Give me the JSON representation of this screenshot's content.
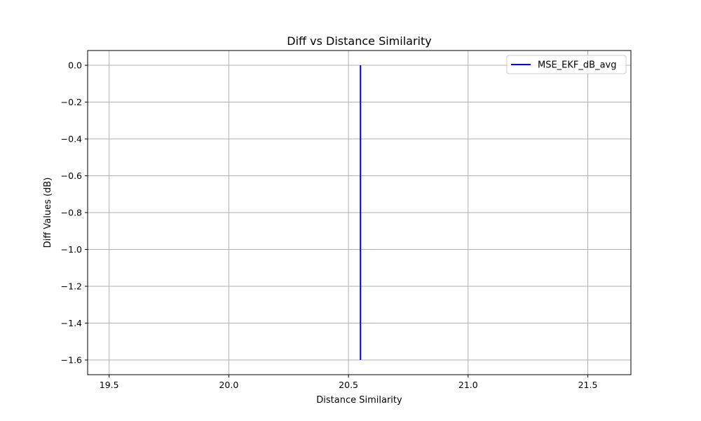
{
  "chart_data": {
    "type": "line",
    "title": "Diff vs Distance Similarity",
    "xlabel": "Distance Similarity",
    "ylabel": "Diff Values (dB)",
    "xlim": [
      19.41,
      21.68
    ],
    "ylim": [
      -1.68,
      0.08
    ],
    "xticks": [
      19.5,
      20.0,
      20.5,
      21.0,
      21.5
    ],
    "xtick_labels": [
      "19.5",
      "20.0",
      "20.5",
      "21.0",
      "21.5"
    ],
    "yticks": [
      0.0,
      -0.2,
      -0.4,
      -0.6,
      -0.8,
      -1.0,
      -1.2,
      -1.4,
      -1.6
    ],
    "ytick_labels": [
      "0.0",
      "−0.2",
      "−0.4",
      "−0.6",
      "−0.8",
      "−1.0",
      "−1.2",
      "−1.4",
      "−1.6"
    ],
    "grid": true,
    "legend_position": "top-right",
    "series": [
      {
        "name": "MSE_EKF_dB_avg",
        "color": "#0000ff",
        "x": [
          20.55,
          20.55
        ],
        "y": [
          0.0,
          -1.6
        ]
      }
    ]
  }
}
